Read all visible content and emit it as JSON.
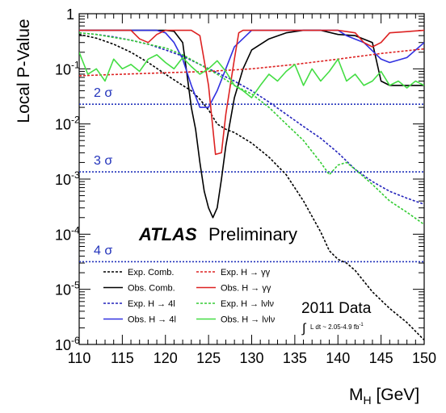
{
  "chart_data": {
    "type": "line",
    "ylabel": "Local P-Value",
    "xlabel_main": "M",
    "xlabel_sub": "H",
    "xlabel_unit": " [GeV]",
    "xlim": [
      110,
      150
    ],
    "ylim": [
      1e-06,
      1
    ],
    "yscale": "log",
    "x_ticks": [
      110,
      115,
      120,
      125,
      130,
      135,
      140,
      145,
      150
    ],
    "y_ticks": [
      {
        "value": 1,
        "label": "1",
        "exp": ""
      },
      {
        "value": 0.1,
        "label": "10",
        "exp": "-1"
      },
      {
        "value": 0.01,
        "label": "10",
        "exp": "-2"
      },
      {
        "value": 0.001,
        "label": "10",
        "exp": "-3"
      },
      {
        "value": 0.0001,
        "label": "10",
        "exp": "-4"
      },
      {
        "value": 1e-05,
        "label": "10",
        "exp": "-5"
      },
      {
        "value": 1e-06,
        "label": "10",
        "exp": "-6"
      }
    ],
    "sigma_lines": [
      {
        "label": "2 σ",
        "p": 0.0228
      },
      {
        "label": "3 σ",
        "p": 0.00135
      },
      {
        "label": "4 σ",
        "p": 3.17e-05
      }
    ],
    "experiment": "ATLAS",
    "status": "Preliminary",
    "data_label": "2011 Data",
    "lumi_label": "L dt ~ 2.05-4.9 fb",
    "lumi_exp": "-1",
    "legend_position": "bottom-left",
    "series": [
      {
        "name": "Exp. Comb.",
        "color": "#000000",
        "dash": true,
        "x": [
          110,
          112,
          114,
          116,
          118,
          120,
          122,
          123,
          124,
          125,
          126,
          127,
          128,
          130,
          132,
          134,
          136,
          138,
          139,
          140,
          141,
          142,
          144,
          146,
          148,
          150
        ],
        "y": [
          0.42,
          0.36,
          0.28,
          0.2,
          0.13,
          0.08,
          0.05,
          0.04,
          0.028,
          0.018,
          0.01,
          0.008,
          0.007,
          0.0045,
          0.0025,
          0.0012,
          0.0004,
          0.00011,
          5e-05,
          3.5e-05,
          3e-05,
          2.2e-05,
          9e-06,
          4.5e-06,
          2.5e-06,
          1.2e-06
        ]
      },
      {
        "name": "Obs. Comb.",
        "color": "#000000",
        "dash": false,
        "x": [
          110,
          112,
          114,
          116,
          118,
          120,
          121,
          122,
          122.5,
          123,
          123.5,
          124,
          124.5,
          125,
          125.5,
          126,
          126.5,
          127,
          128,
          129,
          130,
          132,
          134,
          136,
          138,
          140,
          142,
          144,
          145,
          146,
          148,
          150
        ],
        "y": [
          0.5,
          0.5,
          0.5,
          0.5,
          0.5,
          0.5,
          0.48,
          0.3,
          0.08,
          0.02,
          0.008,
          0.002,
          0.0006,
          0.0003,
          0.0002,
          0.0003,
          0.001,
          0.004,
          0.03,
          0.1,
          0.22,
          0.35,
          0.45,
          0.5,
          0.5,
          0.42,
          0.4,
          0.3,
          0.06,
          0.05,
          0.05,
          0.05
        ]
      },
      {
        "name": "Exp. H → 4l",
        "color": "#2222bb",
        "dash": true,
        "x": [
          110,
          112,
          114,
          116,
          118,
          120,
          122,
          124,
          126,
          128,
          130,
          132,
          134,
          136,
          138,
          140,
          142,
          144,
          146,
          148,
          150
        ],
        "y": [
          0.45,
          0.42,
          0.38,
          0.33,
          0.28,
          0.22,
          0.17,
          0.12,
          0.085,
          0.06,
          0.04,
          0.025,
          0.015,
          0.009,
          0.0055,
          0.003,
          0.0015,
          0.0009,
          0.0006,
          0.00045,
          0.00035
        ]
      },
      {
        "name": "Obs. H → 4l",
        "color": "#3030e0",
        "dash": false,
        "x": [
          110,
          116,
          118,
          119,
          120,
          121,
          122,
          123,
          124,
          125,
          126,
          127,
          128,
          130,
          135,
          140,
          141,
          143,
          145,
          146,
          148,
          150
        ],
        "y": [
          0.5,
          0.5,
          0.5,
          0.5,
          0.45,
          0.3,
          0.15,
          0.05,
          0.02,
          0.02,
          0.04,
          0.1,
          0.25,
          0.5,
          0.5,
          0.5,
          0.4,
          0.3,
          0.15,
          0.13,
          0.16,
          0.3
        ]
      },
      {
        "name": "Exp. H → γγ",
        "color": "#dd2222",
        "dash": true,
        "x": [
          110,
          115,
          120,
          125,
          130,
          135,
          140,
          145,
          150
        ],
        "y": [
          0.075,
          0.08,
          0.085,
          0.09,
          0.1,
          0.12,
          0.15,
          0.19,
          0.23
        ]
      },
      {
        "name": "Obs. H → γγ",
        "color": "#dd2222",
        "dash": false,
        "x": [
          110,
          116,
          117,
          118,
          119,
          120,
          121,
          122,
          123,
          124,
          125,
          125.8,
          126.5,
          127,
          128,
          128.5,
          129,
          130,
          140,
          142,
          143,
          144,
          145,
          146,
          150
        ],
        "y": [
          0.5,
          0.5,
          0.35,
          0.3,
          0.42,
          0.5,
          0.5,
          0.5,
          0.5,
          0.4,
          0.05,
          0.0028,
          0.003,
          0.015,
          0.15,
          0.45,
          0.5,
          0.5,
          0.5,
          0.45,
          0.3,
          0.25,
          0.3,
          0.45,
          0.5
        ]
      },
      {
        "name": "Exp. H → lνlν",
        "color": "#33cc33",
        "dash": true,
        "x": [
          110,
          112,
          114,
          116,
          118,
          120,
          122,
          124,
          126,
          128,
          130,
          132,
          134,
          136,
          138,
          139,
          140,
          141,
          142,
          144,
          146,
          148,
          150
        ],
        "y": [
          0.45,
          0.42,
          0.37,
          0.33,
          0.28,
          0.24,
          0.18,
          0.12,
          0.08,
          0.05,
          0.035,
          0.02,
          0.01,
          0.005,
          0.002,
          0.0012,
          0.0018,
          0.002,
          0.0015,
          0.0008,
          0.0004,
          0.00025,
          0.00015
        ]
      },
      {
        "name": "Obs. H → lνlν",
        "color": "#44dd44",
        "dash": false,
        "x": [
          110,
          111,
          112,
          113,
          114,
          115,
          116,
          117,
          118,
          119,
          120,
          121,
          122,
          123,
          124,
          125,
          126,
          127,
          128,
          129,
          130,
          131,
          132,
          133,
          134,
          135,
          136,
          137,
          138,
          139,
          140,
          141,
          142,
          143,
          144,
          145,
          146,
          147,
          148,
          149,
          150
        ],
        "y": [
          0.2,
          0.08,
          0.1,
          0.06,
          0.15,
          0.1,
          0.12,
          0.09,
          0.15,
          0.18,
          0.13,
          0.1,
          0.16,
          0.11,
          0.08,
          0.1,
          0.14,
          0.09,
          0.05,
          0.04,
          0.03,
          0.05,
          0.08,
          0.06,
          0.09,
          0.12,
          0.05,
          0.1,
          0.06,
          0.09,
          0.15,
          0.06,
          0.08,
          0.05,
          0.06,
          0.09,
          0.05,
          0.06,
          0.045,
          0.06,
          0.05
        ]
      }
    ]
  }
}
